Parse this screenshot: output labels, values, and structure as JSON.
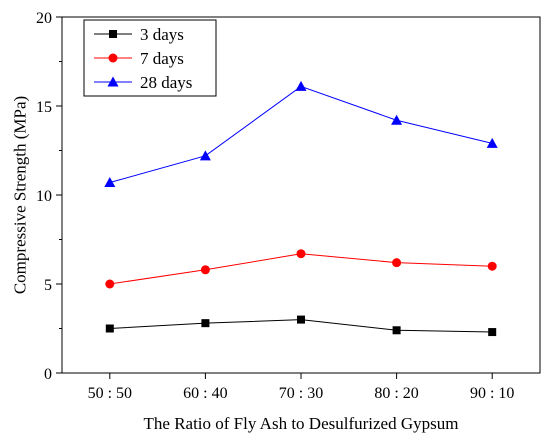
{
  "chart_data": {
    "type": "line",
    "title": "",
    "xlabel": "The Ratio of Fly Ash to Desulfurized Gypsum",
    "ylabel": "Compressive Strength (MPa)",
    "categories": [
      "50 : 50",
      "60 : 40",
      "70 : 30",
      "80 : 20",
      "90 : 10"
    ],
    "ylim": [
      0,
      20
    ],
    "yticks": [
      "0",
      "5",
      "10",
      "15",
      "20"
    ],
    "grid": false,
    "legend_position": "top-left",
    "series": [
      {
        "name": "3 days",
        "color": "#000000",
        "marker": "square",
        "values": [
          2.5,
          2.8,
          3.0,
          2.4,
          2.3
        ]
      },
      {
        "name": "7 days",
        "color": "#ff0000",
        "marker": "circle",
        "values": [
          5.0,
          5.8,
          6.7,
          6.2,
          6.0
        ]
      },
      {
        "name": "28 days",
        "color": "#0000ff",
        "marker": "triangle",
        "values": [
          10.7,
          12.2,
          16.1,
          14.2,
          12.9
        ]
      }
    ]
  }
}
